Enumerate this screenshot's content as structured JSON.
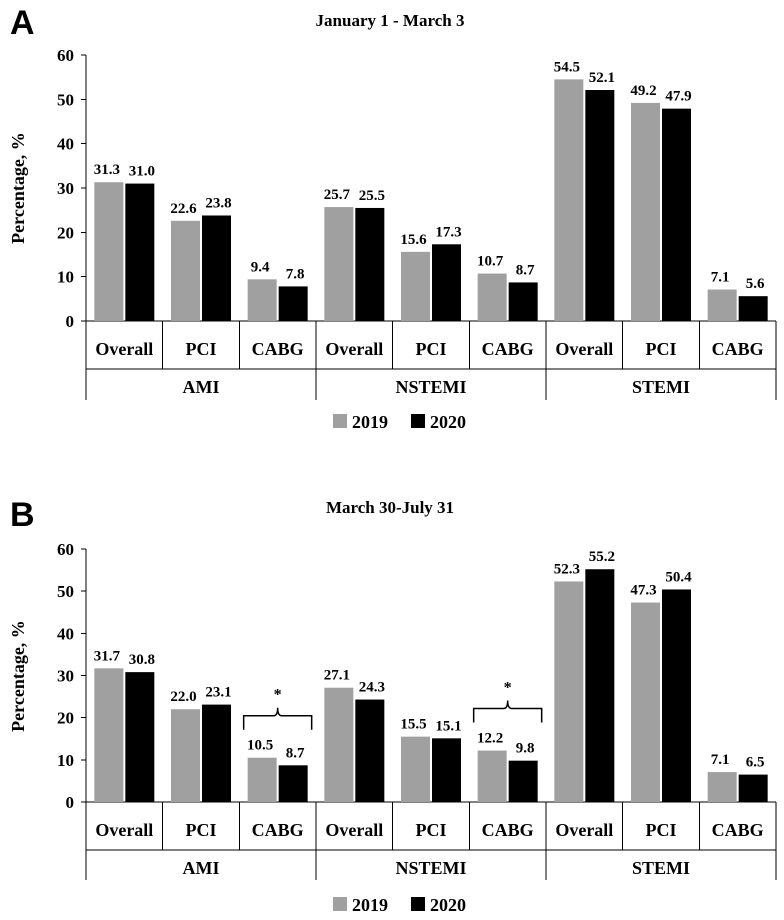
{
  "chart_data": [
    {
      "type": "bar",
      "panel": "A",
      "title": "January 1 - March 3",
      "ylabel": "Percentage, %",
      "ylim": [
        0,
        60
      ],
      "yticks": [
        "0",
        "10",
        "20",
        "30",
        "40",
        "50",
        "60"
      ],
      "groups": [
        "AMI",
        "NSTEMI",
        "STEMI"
      ],
      "subcategories": [
        "Overall",
        "PCI",
        "CABG"
      ],
      "series": [
        {
          "name": "2019",
          "color": "#a0a0a0",
          "values": [
            31.3,
            22.6,
            9.4,
            25.7,
            15.6,
            10.7,
            54.5,
            49.2,
            7.1
          ]
        },
        {
          "name": "2020",
          "color": "#000000",
          "values": [
            31.0,
            23.8,
            7.8,
            25.5,
            17.3,
            8.7,
            52.1,
            47.9,
            5.6
          ]
        }
      ],
      "value_labels": [
        [
          "31.3",
          "22.6",
          "9.4",
          "25.7",
          "15.6",
          "10.7",
          "54.5",
          "49.2",
          "7.1"
        ],
        [
          "31.0",
          "23.8",
          "7.8",
          "25.5",
          "17.3",
          "8.7",
          "52.1",
          "47.9",
          "5.6"
        ]
      ],
      "annotations": []
    },
    {
      "type": "bar",
      "panel": "B",
      "title": "March 30-July 31",
      "ylabel": "Percentage, %",
      "ylim": [
        0,
        60
      ],
      "yticks": [
        "0",
        "10",
        "20",
        "30",
        "40",
        "50",
        "60"
      ],
      "groups": [
        "AMI",
        "NSTEMI",
        "STEMI"
      ],
      "subcategories": [
        "Overall",
        "PCI",
        "CABG"
      ],
      "series": [
        {
          "name": "2019",
          "color": "#a0a0a0",
          "values": [
            31.7,
            22.0,
            10.5,
            27.1,
            15.5,
            12.2,
            52.3,
            47.3,
            7.1
          ]
        },
        {
          "name": "2020",
          "color": "#000000",
          "values": [
            30.8,
            23.1,
            8.7,
            24.3,
            15.1,
            9.8,
            55.2,
            50.4,
            6.5
          ]
        }
      ],
      "value_labels": [
        [
          "31.7",
          "22.0",
          "10.5",
          "27.1",
          "15.5",
          "12.2",
          "52.3",
          "47.3",
          "7.1"
        ],
        [
          "30.8",
          "23.1",
          "8.7",
          "24.3",
          "15.1",
          "9.8",
          "55.2",
          "50.4",
          "6.5"
        ]
      ],
      "annotations": [
        {
          "category_index": 2,
          "text": "*"
        },
        {
          "category_index": 5,
          "text": "*"
        }
      ]
    }
  ],
  "legend": [
    "2019",
    "2020"
  ]
}
